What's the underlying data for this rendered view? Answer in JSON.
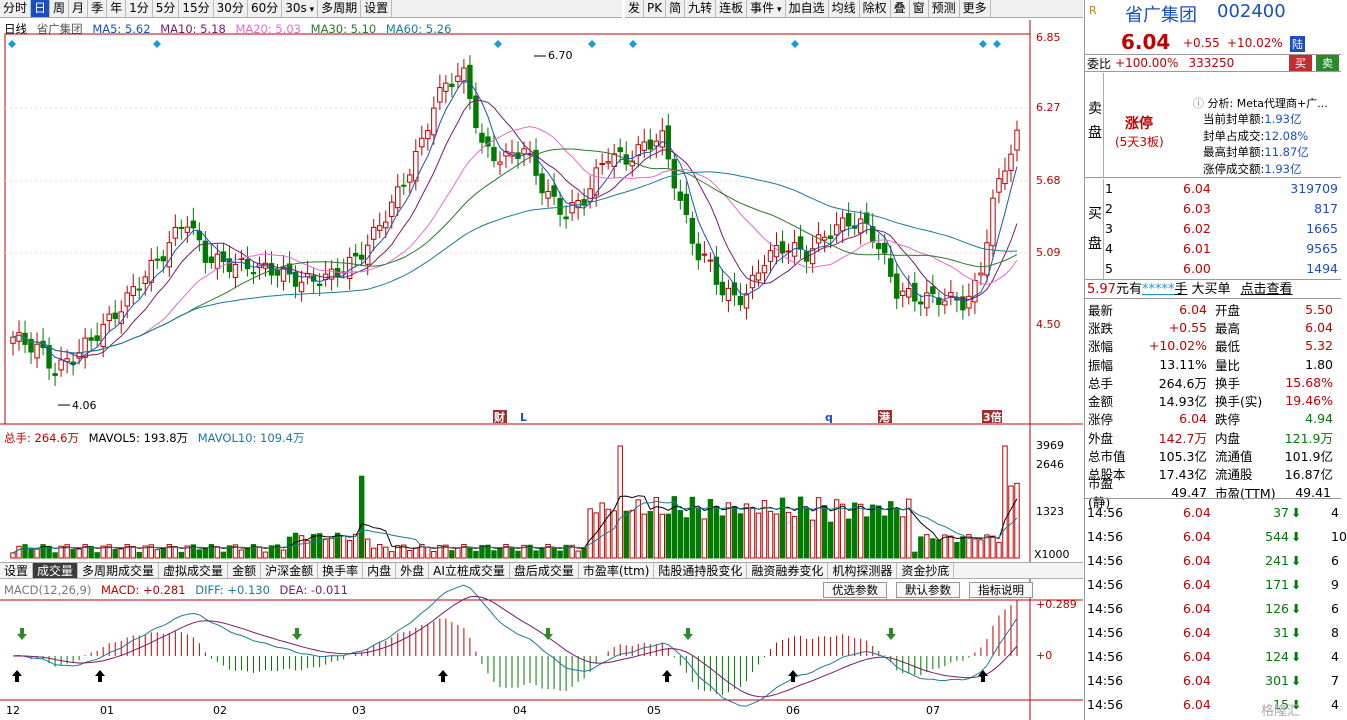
{
  "toolbar_left": [
    "分时",
    "日",
    "周",
    "月",
    "季",
    "年",
    "1分",
    "5分",
    "15分",
    "30分",
    "60分",
    "30s",
    "多周期",
    "设置"
  ],
  "toolbar_right": [
    "发",
    "PK",
    "简",
    "九转",
    "连板",
    "事件",
    "加自选",
    "均线",
    "除权",
    "叠",
    "窗",
    "预测",
    "更多"
  ],
  "ma_line": {
    "name": "日线",
    "stock": "省广集团",
    "ma5": "MA5: 5.62",
    "ma10": "MA10: 5.18",
    "ma20": "MA20: 5.03",
    "ma30": "MA30: 5.10",
    "ma60": "MA60: 5.26"
  },
  "price_ticks": [
    "6.85",
    "6.27",
    "5.68",
    "5.09",
    "4.50"
  ],
  "high_label": "6.70",
  "low_label": "4.06",
  "event_marks": [
    "财",
    "L",
    "q",
    "港",
    "3倍"
  ],
  "vol_line": {
    "total": "总手: 264.6万",
    "mavol5": "MAVOL5: 193.8万",
    "mavol10": "MAVOL10: 109.4万"
  },
  "vol_ticks": [
    "3969",
    "2646",
    "1323"
  ],
  "vol_unit": "X1000",
  "subtabs": [
    "设置",
    "成交量",
    "多周期成交量",
    "虚拟成交量",
    "金额",
    "沪深金额",
    "换手率",
    "内盘",
    "外盘",
    "AI立桩成交量",
    "盘后成交量",
    "市盈率(ttm)",
    "陆股通持股变化",
    "融资融券变化",
    "机构探测器",
    "资金抄底"
  ],
  "macd_line": {
    "name": "MACD(12,26,9)",
    "macd": "MACD: +0.281",
    "diff": "DIFF: +0.130",
    "dea": "DEA: -0.011"
  },
  "macd_buttons": [
    "优选参数",
    "默认参数",
    "指标说明"
  ],
  "macd_ticks": [
    "+0.289",
    "+0"
  ],
  "x_ticks": [
    "12",
    "01",
    "02",
    "03",
    "04",
    "05",
    "06",
    "07"
  ],
  "stock": {
    "name": "省广集团",
    "code": "002400",
    "price": "6.04",
    "change": "+0.55",
    "pct": "+10.02%",
    "market": "陆"
  },
  "weibi": {
    "label": "委比",
    "value": "+100.00%",
    "diff": "333250",
    "buy": "买",
    "sell": "卖"
  },
  "sell_side": {
    "side": "卖盘",
    "status": "涨停",
    "status_sub": "(5天3板)",
    "analysis": "分析: Meta代理商+广...",
    "lines": [
      [
        "当前封单额:",
        "1.93亿"
      ],
      [
        "封单占成交:",
        "12.08%"
      ],
      [
        "最高封单额:",
        "11.87亿"
      ],
      [
        "涨停成交额:",
        "1.93亿"
      ]
    ]
  },
  "buy_side": {
    "side": "买盘",
    "rows": [
      [
        "1",
        "6.04",
        "319709"
      ],
      [
        "2",
        "6.03",
        "817"
      ],
      [
        "3",
        "6.02",
        "1665"
      ],
      [
        "4",
        "6.01",
        "9565"
      ],
      [
        "5",
        "6.00",
        "1494"
      ]
    ]
  },
  "notice": {
    "price": "5.97",
    "text1": "元有",
    "stars": "*****",
    "unit": "手",
    "text2": "大买单",
    "link": "点击查看"
  },
  "quote": [
    [
      "最新",
      "6.04",
      "开盘",
      "5.50"
    ],
    [
      "涨跌",
      "+0.55",
      "最高",
      "6.04"
    ],
    [
      "涨幅",
      "+10.02%",
      "最低",
      "5.32"
    ],
    [
      "振幅",
      "13.11%",
      "量比",
      "1.80"
    ],
    [
      "总手",
      "264.6万",
      "换手",
      "15.68%"
    ],
    [
      "金额",
      "14.93亿",
      "换手(实)",
      "19.46%"
    ],
    [
      "涨停",
      "6.04",
      "跌停",
      "4.94"
    ],
    [
      "外盘",
      "142.7万",
      "内盘",
      "121.9万"
    ],
    [
      "总市值",
      "105.3亿",
      "流通值",
      "101.9亿"
    ],
    [
      "总股本",
      "17.43亿",
      "流通股",
      "16.87亿"
    ],
    [
      "市盈(静)",
      "49.47",
      "市盈(TTM)",
      "49.41"
    ]
  ],
  "ticks": [
    [
      "14:56",
      "6.04",
      "37",
      "4"
    ],
    [
      "14:56",
      "6.04",
      "544",
      "10"
    ],
    [
      "14:56",
      "6.04",
      "241",
      "6"
    ],
    [
      "14:56",
      "6.04",
      "171",
      "9"
    ],
    [
      "14:56",
      "6.04",
      "126",
      "6"
    ],
    [
      "14:56",
      "6.04",
      "31",
      "8"
    ],
    [
      "14:56",
      "6.04",
      "124",
      "4"
    ],
    [
      "14:56",
      "6.04",
      "301",
      "7"
    ],
    [
      "14:56",
      "6.04",
      "15",
      "4"
    ]
  ],
  "watermark": "格隆汇",
  "colors": {
    "up": "#c00000",
    "down": "#007a00",
    "blue": "#1a4fc0"
  }
}
